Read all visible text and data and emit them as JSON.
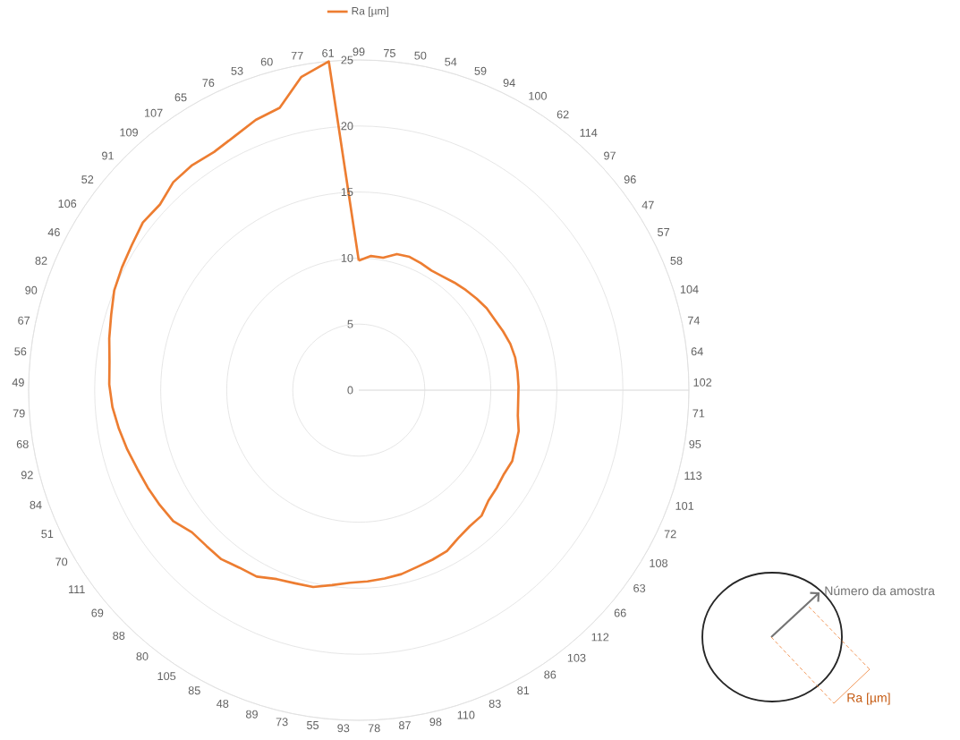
{
  "chart_data": {
    "type": "radar",
    "categories": [
      "99",
      "75",
      "50",
      "54",
      "59",
      "94",
      "100",
      "62",
      "114",
      "97",
      "96",
      "47",
      "57",
      "58",
      "104",
      "74",
      "64",
      "102",
      "71",
      "95",
      "113",
      "101",
      "72",
      "108",
      "63",
      "66",
      "112",
      "103",
      "86",
      "81",
      "83",
      "110",
      "98",
      "87",
      "78",
      "93",
      "55",
      "73",
      "89",
      "48",
      "85",
      "105",
      "80",
      "88",
      "69",
      "111",
      "70",
      "51",
      "84",
      "92",
      "68",
      "79",
      "49",
      "56",
      "67",
      "90",
      "82",
      "46",
      "106",
      "52",
      "91",
      "109",
      "107",
      "65",
      "76",
      "53",
      "60",
      "77",
      "61"
    ],
    "series": [
      {
        "name": "Ra [µm]",
        "color": "#ed7d31",
        "values": [
          9.8,
          10.2,
          10.2,
          10.7,
          10.8,
          10.7,
          10.6,
          10.7,
          10.9,
          11.1,
          11.3,
          11.5,
          11.6,
          11.8,
          12.0,
          12.1,
          12.1,
          12.1,
          12.1,
          12.2,
          12.5,
          12.6,
          12.8,
          12.7,
          12.8,
          12.9,
          13.3,
          13.3,
          13.5,
          13.9,
          14.0,
          14.1,
          14.3,
          14.4,
          14.5,
          14.6,
          14.9,
          15.3,
          15.4,
          15.6,
          16.1,
          16.2,
          16.5,
          16.5,
          16.6,
          17.2,
          17.4,
          17.6,
          17.8,
          18.1,
          18.4,
          18.7,
          18.9,
          19.0,
          19.3,
          19.6,
          20.0,
          20.2,
          20.4,
          20.7,
          20.6,
          21.1,
          21.2,
          21.1,
          21.4,
          21.9,
          22.2,
          24.1,
          25.0
        ]
      }
    ],
    "ylim": [
      0,
      25
    ],
    "yticks": [
      0,
      5,
      10,
      15,
      20,
      25
    ],
    "grid": true,
    "legend": "top",
    "annotations": [
      "Número da amostra",
      "Ra [µm]"
    ]
  }
}
